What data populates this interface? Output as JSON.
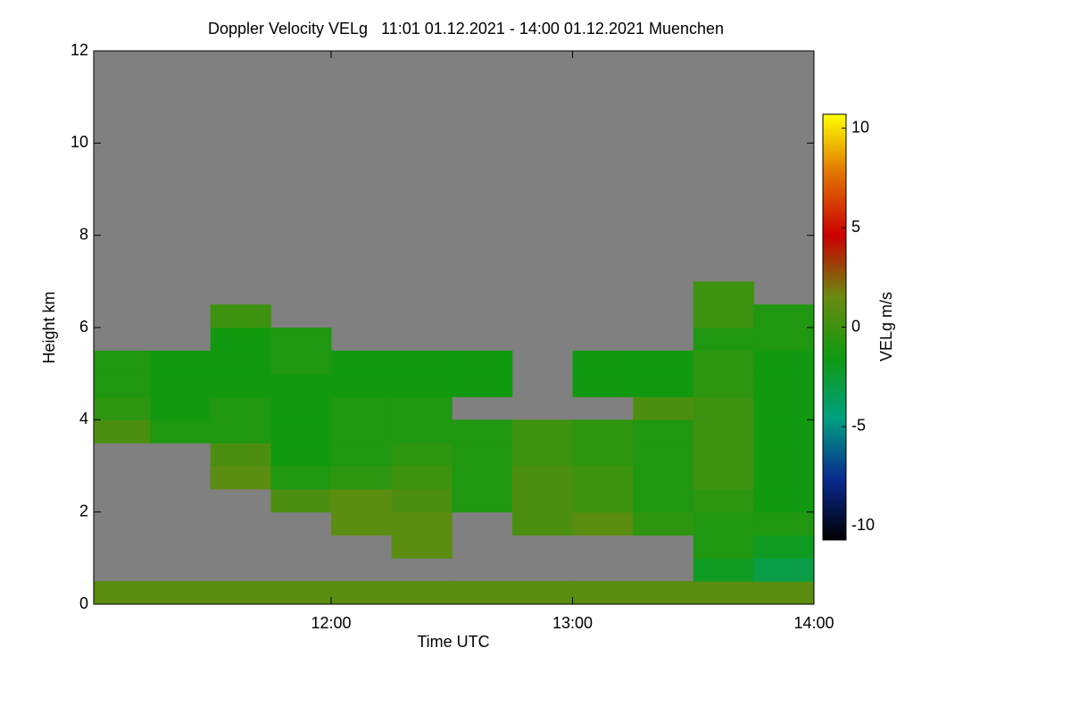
{
  "chart_data": {
    "type": "heatmap",
    "title": "Doppler Velocity VELg   11:01 01.12.2021 - 14:00 01.12.2021 Muenchen",
    "xlabel": "Time UTC",
    "ylabel": "Height km",
    "zlabel": "VELg m/s",
    "x": [
      11.125,
      11.375,
      11.625,
      11.875,
      12.125,
      12.375,
      12.625,
      12.875,
      13.125,
      13.375,
      13.625,
      13.875
    ],
    "y": [
      0.25,
      0.75,
      1.25,
      1.75,
      2.25,
      2.75,
      3.25,
      3.75,
      4.25,
      4.75,
      5.25,
      5.75,
      6.25,
      6.75
    ],
    "values": [
      [
        1,
        1,
        1,
        1,
        1,
        1,
        1,
        1,
        1,
        1,
        1,
        1
      ],
      [
        null,
        null,
        null,
        null,
        null,
        null,
        null,
        null,
        null,
        null,
        -2,
        -3
      ],
      [
        null,
        null,
        null,
        null,
        null,
        1,
        null,
        null,
        null,
        null,
        -1,
        -2
      ],
      [
        null,
        null,
        null,
        null,
        1,
        1,
        null,
        0.5,
        1,
        -0.5,
        -1,
        -1
      ],
      [
        null,
        null,
        null,
        0.5,
        1,
        0.5,
        -1,
        0.5,
        0,
        -1,
        -0.5,
        -1.5
      ],
      [
        null,
        null,
        1,
        -1,
        -0.5,
        0,
        -1,
        0.5,
        0,
        -1,
        0,
        -1.5
      ],
      [
        null,
        null,
        0.5,
        -1.5,
        -1,
        -0.5,
        -1,
        0,
        -0.5,
        -1,
        0,
        -1.5
      ],
      [
        0.5,
        -1,
        -1,
        -1.5,
        -1,
        -1,
        -1,
        0,
        -0.5,
        -1,
        0,
        -1.5
      ],
      [
        -0.5,
        -1.5,
        -1,
        -1.5,
        -1,
        -1,
        null,
        null,
        null,
        0.5,
        0,
        -1.5
      ],
      [
        -1,
        -1.5,
        -1.5,
        -1.5,
        -1.5,
        -1.5,
        -1.5,
        null,
        -1.5,
        -1.5,
        -0.5,
        -1.5
      ],
      [
        -1,
        -1.5,
        -1.5,
        -1,
        -1.5,
        -1.5,
        -1.5,
        null,
        -1.5,
        -1.5,
        -0.5,
        -1.5
      ],
      [
        null,
        null,
        -1.5,
        -1,
        null,
        null,
        null,
        null,
        null,
        null,
        -1,
        -1
      ],
      [
        null,
        null,
        0,
        null,
        null,
        null,
        null,
        null,
        null,
        null,
        0,
        -1
      ],
      [
        null,
        null,
        null,
        null,
        null,
        null,
        null,
        null,
        null,
        null,
        0,
        null
      ]
    ],
    "xlim": [
      11.0167,
      14.0
    ],
    "xticks": [
      {
        "value": 12,
        "label": "12:00"
      },
      {
        "value": 13,
        "label": "13:00"
      },
      {
        "value": 14,
        "label": "14:00"
      }
    ],
    "ylim": [
      0,
      12
    ],
    "yticks": [
      0,
      2,
      4,
      6,
      8,
      10,
      12
    ],
    "zlim": [
      -10.7,
      10.7
    ],
    "zticks": [
      10,
      5,
      0,
      -5,
      -10
    ],
    "background": "#808080",
    "colormap": [
      "#000000",
      "#0a2a90",
      "#00a080",
      "#109a10",
      "#6a8a10",
      "#cc0000",
      "#e07000",
      "#ffff00"
    ]
  }
}
